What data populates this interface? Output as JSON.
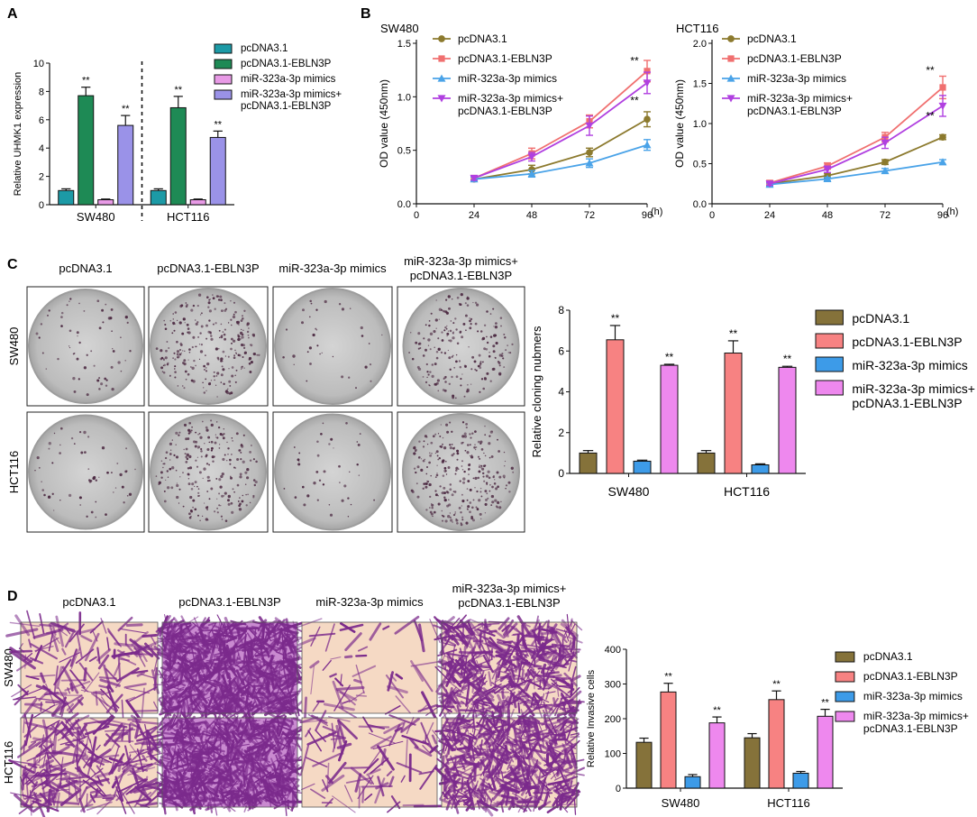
{
  "panels": {
    "A": {
      "letter": "A",
      "chart_data": {
        "type": "bar",
        "ylabel": "Relative UHMK1 expression",
        "ylim": [
          0,
          10
        ],
        "yticks": [
          0,
          2,
          4,
          6,
          8,
          10
        ],
        "categories": [
          "SW480",
          "HCT116"
        ],
        "series": [
          {
            "name": "pcDNA3.1",
            "color": "#1c9aa6",
            "values": [
              1.0,
              1.0
            ],
            "errors": [
              0.12,
              0.12
            ],
            "sig": [
              "",
              ""
            ]
          },
          {
            "name": "pcDNA3.1-EBLN3P",
            "color": "#1e8a55",
            "values": [
              7.7,
              6.85
            ],
            "errors": [
              0.6,
              0.8
            ],
            "sig": [
              "**",
              "**"
            ]
          },
          {
            "name": "miR-323a-3p mimics",
            "color": "#e89ae6",
            "values": [
              0.35,
              0.35
            ],
            "errors": [
              0.05,
              0.05
            ],
            "sig": [
              "",
              ""
            ]
          },
          {
            "name": "miR-323a-3p mimics+\npcDNA3.1-EBLN3P",
            "color": "#9a92e8",
            "values": [
              5.6,
              4.75
            ],
            "errors": [
              0.7,
              0.45
            ],
            "sig": [
              "**",
              "**"
            ]
          }
        ],
        "separator": "dashed vertical line between SW480 and HCT116"
      }
    },
    "B": {
      "letter": "B",
      "xlabel_unit": "(h)",
      "ylabel": "OD value (450nm)",
      "charts": [
        {
          "type": "line",
          "title": "SW480",
          "x": [
            0,
            24,
            48,
            72,
            96
          ],
          "xticks": [
            0,
            24,
            48,
            72,
            96
          ],
          "ylim": [
            0,
            1.5
          ],
          "yticks": [
            "0.0",
            "0.5",
            "1.0",
            "1.5"
          ],
          "series": [
            {
              "name": "pcDNA3.1",
              "color": "#8c7a2e",
              "marker": "circle",
              "x": [
                24,
                48,
                72,
                96
              ],
              "values": [
                0.23,
                0.32,
                0.48,
                0.79
              ],
              "errors": [
                0.02,
                0.04,
                0.04,
                0.07
              ]
            },
            {
              "name": "pcDNA3.1-EBLN3P",
              "color": "#f07070",
              "marker": "square",
              "x": [
                24,
                48,
                72,
                96
              ],
              "values": [
                0.24,
                0.47,
                0.77,
                1.24
              ],
              "errors": [
                0.02,
                0.05,
                0.06,
                0.1
              ]
            },
            {
              "name": "miR-323a-3p mimics",
              "color": "#4aa3e8",
              "marker": "triangle-up",
              "x": [
                24,
                48,
                72,
                96
              ],
              "values": [
                0.23,
                0.28,
                0.38,
                0.55
              ],
              "errors": [
                0.02,
                0.03,
                0.04,
                0.05
              ]
            },
            {
              "name": "miR-323a-3p mimics+\npcDNA3.1-EBLN3P",
              "color": "#b040e0",
              "marker": "triangle-down",
              "x": [
                24,
                48,
                72,
                96
              ],
              "values": [
                0.24,
                0.44,
                0.73,
                1.13
              ],
              "errors": [
                0.02,
                0.04,
                0.09,
                0.1
              ]
            }
          ],
          "sig": [
            {
              "x": 96,
              "y": 1.3,
              "text": "**"
            },
            {
              "x": 96,
              "y": 0.93,
              "text": "**"
            }
          ]
        },
        {
          "type": "line",
          "title": "HCT116",
          "x": [
            0,
            24,
            48,
            72,
            96
          ],
          "xticks": [
            0,
            24,
            48,
            72,
            96
          ],
          "ylim": [
            0,
            2.0
          ],
          "yticks": [
            "0.0",
            "0.5",
            "1.0",
            "1.5",
            "2.0"
          ],
          "series": [
            {
              "name": "pcDNA3.1",
              "color": "#8c7a2e",
              "marker": "circle",
              "x": [
                24,
                48,
                72,
                96
              ],
              "values": [
                0.25,
                0.35,
                0.52,
                0.83
              ],
              "errors": [
                0.02,
                0.03,
                0.03,
                0.03
              ]
            },
            {
              "name": "pcDNA3.1-EBLN3P",
              "color": "#f07070",
              "marker": "square",
              "x": [
                24,
                48,
                72,
                96
              ],
              "values": [
                0.26,
                0.47,
                0.83,
                1.45
              ],
              "errors": [
                0.03,
                0.04,
                0.06,
                0.14
              ]
            },
            {
              "name": "miR-323a-3p mimics",
              "color": "#4aa3e8",
              "marker": "triangle-up",
              "x": [
                24,
                48,
                72,
                96
              ],
              "values": [
                0.24,
                0.31,
                0.41,
                0.52
              ],
              "errors": [
                0.02,
                0.02,
                0.03,
                0.03
              ]
            },
            {
              "name": "miR-323a-3p mimics+\npcDNA3.1-EBLN3P",
              "color": "#b040e0",
              "marker": "triangle-down",
              "x": [
                24,
                48,
                72,
                96
              ],
              "values": [
                0.25,
                0.43,
                0.76,
                1.22
              ],
              "errors": [
                0.02,
                0.04,
                0.07,
                0.13
              ]
            }
          ],
          "sig": [
            {
              "x": 96,
              "y": 1.62,
              "text": "**"
            },
            {
              "x": 96,
              "y": 1.05,
              "text": "**"
            }
          ]
        }
      ]
    },
    "C": {
      "letter": "C",
      "column_labels": [
        "pcDNA3.1",
        "pcDNA3.1-EBLN3P",
        "miR-323a-3p mimics",
        "miR-323a-3p mimics+\npcDNA3.1-EBLN3P"
      ],
      "row_labels": [
        "SW480",
        "HCT116"
      ],
      "colony_density": [
        [
          60,
          260,
          35,
          210
        ],
        [
          55,
          230,
          40,
          280
        ]
      ],
      "chart_data": {
        "type": "bar",
        "ylabel": "Relative cloning nubmers",
        "ylim": [
          0,
          8
        ],
        "yticks": [
          0,
          2,
          4,
          6,
          8
        ],
        "categories": [
          "SW480",
          "HCT116"
        ],
        "series": [
          {
            "name": "pcDNA3.1",
            "color": "#85723a",
            "values": [
              1.0,
              1.0
            ],
            "errors": [
              0.12,
              0.12
            ],
            "sig": [
              "",
              ""
            ]
          },
          {
            "name": "pcDNA3.1-EBLN3P",
            "color": "#f78282",
            "values": [
              6.55,
              5.9
            ],
            "errors": [
              0.7,
              0.6
            ],
            "sig": [
              "**",
              "**"
            ]
          },
          {
            "name": "miR-323a-3p mimics",
            "color": "#3d9be8",
            "values": [
              0.6,
              0.42
            ],
            "errors": [
              0.05,
              0.05
            ],
            "sig": [
              "",
              ""
            ]
          },
          {
            "name": "miR-323a-3p mimics+\npcDNA3.1-EBLN3P",
            "color": "#ee88ee",
            "values": [
              5.3,
              5.2
            ],
            "errors": [
              0.05,
              0.05
            ],
            "sig": [
              "**",
              "**"
            ]
          }
        ]
      }
    },
    "D": {
      "letter": "D",
      "column_labels": [
        "pcDNA3.1",
        "pcDNA3.1-EBLN3P",
        "miR-323a-3p mimics",
        "miR-323a-3p mimics+\npcDNA3.1-EBLN3P"
      ],
      "row_labels": [
        "SW480",
        "HCT116"
      ],
      "invasion_density": [
        [
          18,
          90,
          6,
          60
        ],
        [
          30,
          85,
          10,
          65
        ]
      ],
      "chart_data": {
        "type": "bar",
        "ylabel": "Relative Invasive cells",
        "ylim": [
          0,
          400
        ],
        "yticks": [
          0,
          100,
          200,
          300,
          400
        ],
        "categories": [
          "SW480",
          "HCT116"
        ],
        "series": [
          {
            "name": "pcDNA3.1",
            "color": "#85723a",
            "values": [
              132,
              145
            ],
            "errors": [
              12,
              12
            ],
            "sig": [
              "",
              ""
            ]
          },
          {
            "name": "pcDNA3.1-EBLN3P",
            "color": "#f78282",
            "values": [
              277,
              255
            ],
            "errors": [
              25,
              25
            ],
            "sig": [
              "**",
              "**"
            ]
          },
          {
            "name": "miR-323a-3p mimics",
            "color": "#3d9be8",
            "values": [
              33,
              43
            ],
            "errors": [
              6,
              5
            ],
            "sig": [
              "",
              ""
            ]
          },
          {
            "name": "miR-323a-3p mimics+\npcDNA3.1-EBLN3P",
            "color": "#ee88ee",
            "values": [
              188,
              207
            ],
            "errors": [
              17,
              20
            ],
            "sig": [
              "**",
              "**"
            ]
          }
        ]
      }
    }
  },
  "colors": {
    "text": "#111111",
    "plate_bg": "#bcbcbc",
    "plate_rim": "#9d9d9d",
    "colony": "#4d2b43",
    "transwell_bg": "#f5d9c4",
    "transwell_cell": "#7b2a8c"
  }
}
